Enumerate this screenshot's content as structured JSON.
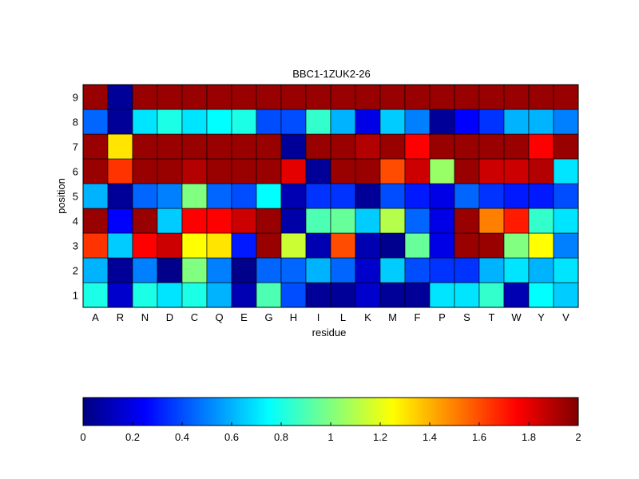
{
  "chart_data": {
    "type": "heatmap",
    "title": "BBC1-1ZUK2-26",
    "xlabel": "residue",
    "ylabel": "position",
    "x_categories": [
      "A",
      "R",
      "N",
      "D",
      "C",
      "Q",
      "E",
      "G",
      "H",
      "I",
      "L",
      "K",
      "M",
      "F",
      "P",
      "S",
      "T",
      "W",
      "Y",
      "V"
    ],
    "y_categories": [
      "1",
      "2",
      "3",
      "4",
      "5",
      "6",
      "7",
      "8",
      "9"
    ],
    "values": [
      [
        0.8,
        0.15,
        0.8,
        0.7,
        0.8,
        0.6,
        0.1,
        0.9,
        0.4,
        0.05,
        0.05,
        0.15,
        0.05,
        0.05,
        0.7,
        0.7,
        0.85,
        0.1,
        0.75,
        0.65
      ],
      [
        0.6,
        0.05,
        0.5,
        0.02,
        1.0,
        0.5,
        0.02,
        0.45,
        0.45,
        0.6,
        0.45,
        0.15,
        0.65,
        0.4,
        0.35,
        0.35,
        0.6,
        0.7,
        0.6,
        0.7
      ],
      [
        1.65,
        0.65,
        1.75,
        1.85,
        1.25,
        1.3,
        0.3,
        1.95,
        1.15,
        0.1,
        1.6,
        0.1,
        0.03,
        0.95,
        0.2,
        1.95,
        1.95,
        1.0,
        1.25,
        0.5
      ],
      [
        1.95,
        0.25,
        1.95,
        0.65,
        1.75,
        1.75,
        1.85,
        1.95,
        0.08,
        0.9,
        0.95,
        0.65,
        1.1,
        0.45,
        0.2,
        1.95,
        1.5,
        1.7,
        0.85,
        0.7
      ],
      [
        0.6,
        0.05,
        0.45,
        0.5,
        1.0,
        0.45,
        0.4,
        0.75,
        0.1,
        0.35,
        0.35,
        0.05,
        0.4,
        0.3,
        0.2,
        0.45,
        0.35,
        0.3,
        0.3,
        0.4
      ],
      [
        1.95,
        1.65,
        1.95,
        1.95,
        1.9,
        1.95,
        1.95,
        1.95,
        1.8,
        0.05,
        1.95,
        1.95,
        1.6,
        1.85,
        1.05,
        1.95,
        1.85,
        1.85,
        1.9,
        0.7
      ],
      [
        1.95,
        1.3,
        1.95,
        1.95,
        1.95,
        1.95,
        1.95,
        1.95,
        0.05,
        1.95,
        1.95,
        1.9,
        1.95,
        1.75,
        1.95,
        1.95,
        1.95,
        1.95,
        1.75,
        1.95
      ],
      [
        0.45,
        0.05,
        0.7,
        0.8,
        0.7,
        0.75,
        0.8,
        0.4,
        0.4,
        0.85,
        0.6,
        0.2,
        0.65,
        0.5,
        0.05,
        0.25,
        0.35,
        0.6,
        0.6,
        0.5
      ],
      [
        1.95,
        0.05,
        1.95,
        1.95,
        1.95,
        1.95,
        1.95,
        1.95,
        1.95,
        1.95,
        1.95,
        1.95,
        1.95,
        1.95,
        1.95,
        1.95,
        1.95,
        1.95,
        1.95,
        1.95
      ]
    ],
    "colormap": "jet",
    "color_range": [
      0,
      2
    ],
    "colorbar": {
      "placement": "bottom",
      "ticks": [
        0,
        0.2,
        0.4,
        0.6,
        0.8,
        1,
        1.2,
        1.4,
        1.6,
        1.8,
        2
      ],
      "tick_labels": [
        "0",
        "0.2",
        "0.4",
        "0.6",
        "0.8",
        "1",
        "1.2",
        "1.4",
        "1.6",
        "1.8",
        "2"
      ]
    },
    "grid": false
  }
}
